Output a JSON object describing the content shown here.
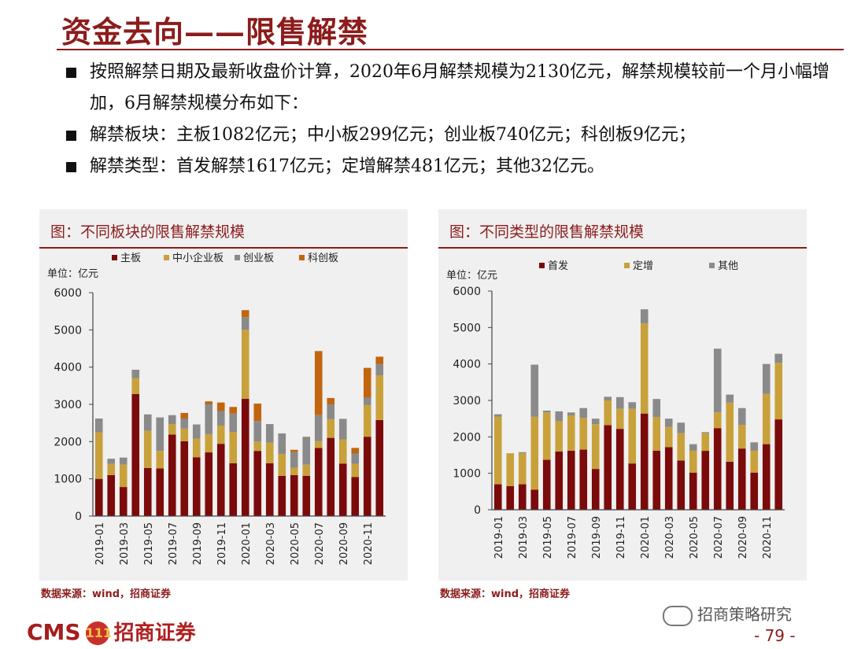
{
  "title": "资金去向——限售解禁",
  "bullets": [
    "按照解禁日期及最新收盘价计算，2020年6月解禁规模为2130亿元，解禁规模较前一个月小幅增加，6月解禁规模分布如下：",
    "解禁板块：主板1082亿元；中小板299亿元；创业板740亿元；科创板9亿元；",
    "解禁类型：首发解禁1617亿元；定增解禁481亿元；其他32亿元。"
  ],
  "chart_data": [
    {
      "type": "bar",
      "stacked": true,
      "title": "图：不同板块的限售解禁规模",
      "unit": "单位：亿元",
      "ylim": [
        0,
        6000
      ],
      "yticks": [
        0,
        1000,
        2000,
        3000,
        4000,
        5000,
        6000
      ],
      "categories": [
        "2019-01",
        "2019-02",
        "2019-03",
        "2019-04",
        "2019-05",
        "2019-06",
        "2019-07",
        "2019-08",
        "2019-09",
        "2019-10",
        "2019-11",
        "2019-12",
        "2020-01",
        "2020-02",
        "2020-03",
        "2020-04",
        "2020-05",
        "2020-06",
        "2020-07",
        "2020-08",
        "2020-09",
        "2020-10",
        "2020-11",
        "2020-12"
      ],
      "xtick_labels": [
        "2019-01",
        "2019-03",
        "2019-05",
        "2019-07",
        "2019-09",
        "2019-11",
        "2020-01",
        "2020-03",
        "2020-05",
        "2020-07",
        "2020-09",
        "2020-11"
      ],
      "legend_position": "top",
      "series": [
        {
          "name": "主板",
          "color": "#7b0a0a",
          "values": [
            1000,
            1100,
            780,
            3280,
            1290,
            1280,
            2190,
            2010,
            1580,
            1710,
            1940,
            1420,
            3150,
            1750,
            1420,
            1080,
            1100,
            1082,
            1830,
            2100,
            1410,
            1050,
            2130,
            2580
          ]
        },
        {
          "name": "中小企业板",
          "color": "#c9a13b",
          "values": [
            1250,
            300,
            600,
            420,
            1000,
            470,
            280,
            340,
            500,
            490,
            490,
            840,
            1850,
            250,
            550,
            590,
            200,
            299,
            180,
            500,
            650,
            350,
            850,
            1200
          ]
        },
        {
          "name": "创业板",
          "color": "#8a8a8a",
          "values": [
            370,
            140,
            190,
            230,
            440,
            900,
            240,
            270,
            380,
            800,
            390,
            490,
            340,
            550,
            500,
            550,
            420,
            740,
            700,
            400,
            550,
            280,
            200,
            300
          ]
        },
        {
          "name": "科创板",
          "color": "#c2650f",
          "values": [
            0,
            0,
            0,
            0,
            0,
            0,
            0,
            150,
            0,
            80,
            230,
            180,
            190,
            470,
            0,
            0,
            60,
            9,
            1720,
            170,
            0,
            150,
            800,
            200
          ]
        }
      ]
    },
    {
      "type": "bar",
      "stacked": true,
      "title": "图：不同类型的限售解禁规模",
      "unit": "单位：亿元",
      "ylim": [
        0,
        6000
      ],
      "yticks": [
        0,
        1000,
        2000,
        3000,
        4000,
        5000,
        6000
      ],
      "categories": [
        "2019-01",
        "2019-02",
        "2019-03",
        "2019-04",
        "2019-05",
        "2019-06",
        "2019-07",
        "2019-08",
        "2019-09",
        "2019-10",
        "2019-11",
        "2019-12",
        "2020-01",
        "2020-02",
        "2020-03",
        "2020-04",
        "2020-05",
        "2020-06",
        "2020-07",
        "2020-08",
        "2020-09",
        "2020-10",
        "2020-11",
        "2020-12"
      ],
      "xtick_labels": [
        "2019-01",
        "2019-03",
        "2019-05",
        "2019-07",
        "2019-09",
        "2019-11",
        "2020-01",
        "2020-03",
        "2020-05",
        "2020-07",
        "2020-09",
        "2020-11"
      ],
      "legend_position": "top",
      "series": [
        {
          "name": "首发",
          "color": "#7b0a0a",
          "values": [
            700,
            650,
            700,
            550,
            1370,
            1600,
            1620,
            1650,
            1120,
            2320,
            2220,
            1270,
            2640,
            1620,
            1720,
            1350,
            1020,
            1617,
            2240,
            1320,
            1680,
            1020,
            1800,
            2480
          ]
        },
        {
          "name": "定增",
          "color": "#c9a13b",
          "values": [
            1850,
            900,
            850,
            2000,
            1300,
            830,
            970,
            870,
            1230,
            680,
            550,
            1500,
            2470,
            920,
            550,
            750,
            600,
            481,
            430,
            1620,
            650,
            600,
            1380,
            1550
          ]
        },
        {
          "name": "其他",
          "color": "#8a8a8a",
          "values": [
            70,
            0,
            30,
            1430,
            50,
            270,
            80,
            270,
            150,
            100,
            320,
            180,
            390,
            500,
            230,
            290,
            180,
            32,
            1750,
            220,
            460,
            230,
            820,
            250
          ]
        }
      ]
    }
  ],
  "source_left": "数据来源：wind，招商证券",
  "source_right": "数据来源：wind，招商证券",
  "logo": {
    "latin": "CMS",
    "badge": "111",
    "name": "招商证券"
  },
  "wechat_label": "招商策略研究",
  "page_number": "- 79 -"
}
